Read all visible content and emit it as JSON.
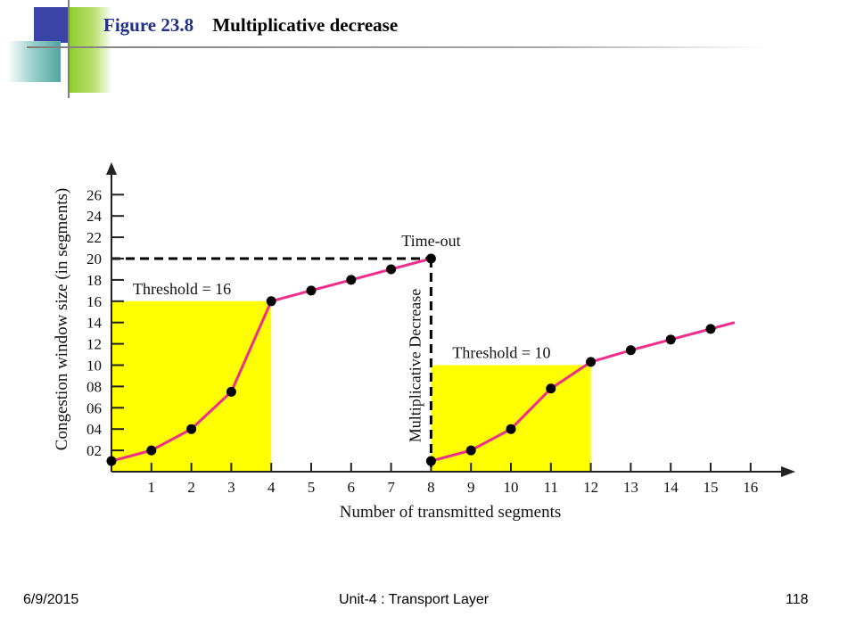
{
  "slide": {
    "figure_number": "Figure 23.8",
    "figure_title": "Multiplicative decrease"
  },
  "footer": {
    "date": "6/9/2015",
    "center": "Unit-4 : Transport Layer",
    "page": "118"
  },
  "colors": {
    "line": "#ef2d8c",
    "threshold_fill": "#ffff00",
    "accent": "#1f2f8a"
  },
  "chart_data": {
    "type": "line",
    "xlabel": "Number of transmitted segments",
    "ylabel": "Congestion window size (in segments)",
    "xlim": [
      0,
      16
    ],
    "ylim": [
      0,
      26
    ],
    "x_ticks": [
      1,
      2,
      3,
      4,
      5,
      6,
      7,
      8,
      9,
      10,
      11,
      12,
      13,
      14,
      15,
      16
    ],
    "y_ticks": [
      {
        "value": 2,
        "label": "02"
      },
      {
        "value": 4,
        "label": "04"
      },
      {
        "value": 6,
        "label": "06"
      },
      {
        "value": 8,
        "label": "08"
      },
      {
        "value": 10,
        "label": "10"
      },
      {
        "value": 12,
        "label": "12"
      },
      {
        "value": 14,
        "label": "14"
      },
      {
        "value": 16,
        "label": "16"
      },
      {
        "value": 18,
        "label": "18"
      },
      {
        "value": 20,
        "label": "20"
      },
      {
        "value": 22,
        "label": "22"
      },
      {
        "value": 24,
        "label": "24"
      },
      {
        "value": 26,
        "label": "26"
      }
    ],
    "grid": false,
    "series": [
      {
        "x": [
          0,
          1,
          2,
          3,
          4,
          5,
          6,
          7,
          8
        ],
        "y": [
          1,
          2,
          4,
          7.5,
          16,
          17,
          18,
          19,
          20
        ]
      },
      {
        "x": [
          8,
          9,
          10,
          11,
          12,
          13,
          14,
          15
        ],
        "y": [
          1,
          2,
          4,
          7.8,
          10.3,
          11.4,
          12.4,
          13.4
        ],
        "extend_to_x": 15.6
      }
    ],
    "threshold_regions": [
      {
        "label": "Threshold = 16",
        "x_from": 0,
        "x_to": 4,
        "y": 16
      },
      {
        "label": "Threshold = 10",
        "x_from": 8,
        "x_to": 12,
        "y": 10
      }
    ],
    "annotations": {
      "timeout_label": "Time-out",
      "timeout_point": {
        "x": 8,
        "y": 20
      },
      "decrease_label": "Multiplicative Decrease"
    }
  }
}
